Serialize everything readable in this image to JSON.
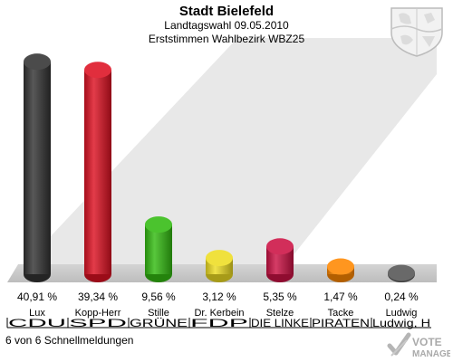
{
  "header": {
    "title": "Stadt Bielefeld",
    "subtitle": "Landtagswahl 09.05.2010",
    "subtitle2": "Erststimmen Wahlbezirk WBZ25"
  },
  "footer": {
    "status": "6 von 6 Schnellmeldungen",
    "watermark_line1": "VOTE",
    "watermark_line2": "MANAGER"
  },
  "chart_data": {
    "type": "bar",
    "title": "Stadt Bielefeld",
    "categories": [
      "CDU",
      "SPD",
      "GRÜNE",
      "FDP",
      "DIE LINKE",
      "PIRATEN",
      "Ludwig, H"
    ],
    "candidates": [
      "Lux",
      "Kopp-Herr",
      "Stille",
      "Dr. Kerbein",
      "Stelze",
      "Tacke",
      "Ludwig"
    ],
    "values": [
      40.91,
      39.34,
      9.56,
      3.12,
      5.35,
      1.47,
      0.24
    ],
    "value_labels": [
      "40,91 %",
      "39,34 %",
      "9,56 %",
      "3,12 %",
      "5,35 %",
      "1,47 %",
      "0,24 %"
    ],
    "colors": [
      "#333333",
      "#dd1122",
      "#33bb11",
      "#eedd22",
      "#cc1144",
      "#ff8800",
      "#555555"
    ],
    "ylim": [
      0,
      45
    ],
    "grid": false,
    "legend": "none"
  }
}
